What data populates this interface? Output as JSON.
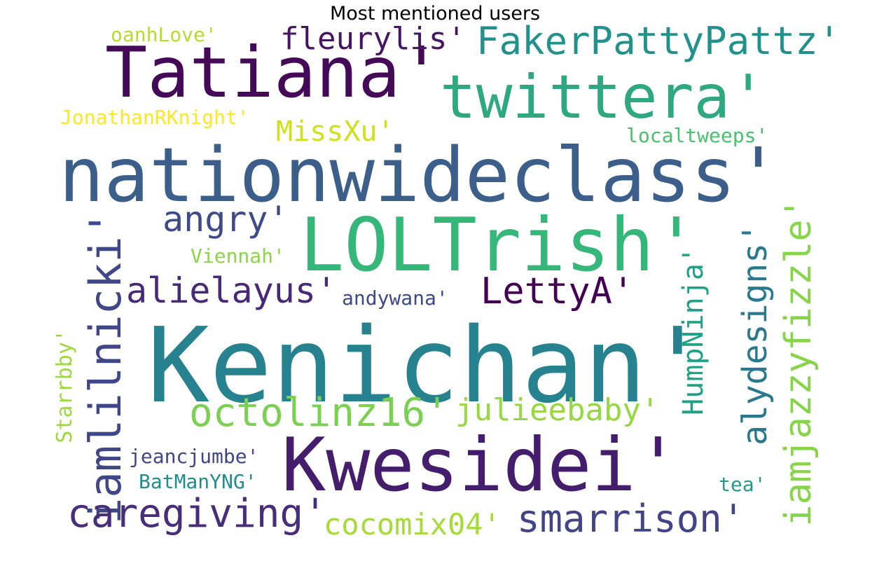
{
  "chart_data": {
    "type": "wordcloud",
    "title": "Most mentioned users",
    "words": [
      {
        "text": "Kenichan'",
        "weight": 100,
        "color": "#26828e"
      },
      {
        "text": "nationwideclass'",
        "weight": 71,
        "color": "#3b5f8a"
      },
      {
        "text": "LOLTrish'",
        "weight": 70,
        "color": "#35b779"
      },
      {
        "text": "Kwesidei'",
        "weight": 70,
        "color": "#451d6d"
      },
      {
        "text": "Tatiana'",
        "weight": 66,
        "color": "#440a58"
      },
      {
        "text": "twittera'",
        "weight": 57,
        "color": "#2ea97f"
      },
      {
        "text": "iamjazzyfizzle'",
        "weight": 45,
        "color": "#86d549"
      },
      {
        "text": "iamlilnicki'",
        "weight": 43,
        "color": "#3f4788"
      },
      {
        "text": "caregiving'",
        "weight": 38,
        "color": "#472d7b"
      },
      {
        "text": "octolinz16'",
        "weight": 38,
        "color": "#7ad151"
      },
      {
        "text": "FakerPattyPattz'",
        "weight": 37,
        "color": "#21918c"
      },
      {
        "text": "smarrison'",
        "weight": 36,
        "color": "#414487"
      },
      {
        "text": "LettyA'",
        "weight": 34,
        "color": "#440154"
      },
      {
        "text": "alielayus'",
        "weight": 34,
        "color": "#482878"
      },
      {
        "text": "angry'",
        "weight": 34,
        "color": "#3e4a89"
      },
      {
        "text": "alydesigns'",
        "weight": 32,
        "color": "#2a788e"
      },
      {
        "text": "julieebaby'",
        "weight": 29,
        "color": "#95d840"
      },
      {
        "text": "fleurylis'",
        "weight": 29,
        "color": "#471365"
      },
      {
        "text": "cocomix04'",
        "weight": 28,
        "color": "#a5db36"
      },
      {
        "text": "HumpNinja'",
        "weight": 27,
        "color": "#1fa188"
      },
      {
        "text": "MissXu'",
        "weight": 27,
        "color": "#d0e11c"
      },
      {
        "text": "Starrbby'",
        "weight": 20,
        "color": "#9bd93c"
      },
      {
        "text": "jeancjumbe'",
        "weight": 18,
        "color": "#404688"
      },
      {
        "text": "JonathanRKnight'",
        "weight": 18,
        "color": "#fde725"
      },
      {
        "text": "oanhLove'",
        "weight": 18,
        "color": "#b5de2b"
      },
      {
        "text": "BatManYNG'",
        "weight": 18,
        "color": "#228c8d"
      },
      {
        "text": "Viennah'",
        "weight": 17,
        "color": "#8bd646"
      },
      {
        "text": "andywana'",
        "weight": 17,
        "color": "#3e4989"
      },
      {
        "text": "localtweeps'",
        "weight": 17,
        "color": "#48c16e"
      },
      {
        "text": "tea'",
        "weight": 17,
        "color": "#1e9c89"
      }
    ]
  }
}
